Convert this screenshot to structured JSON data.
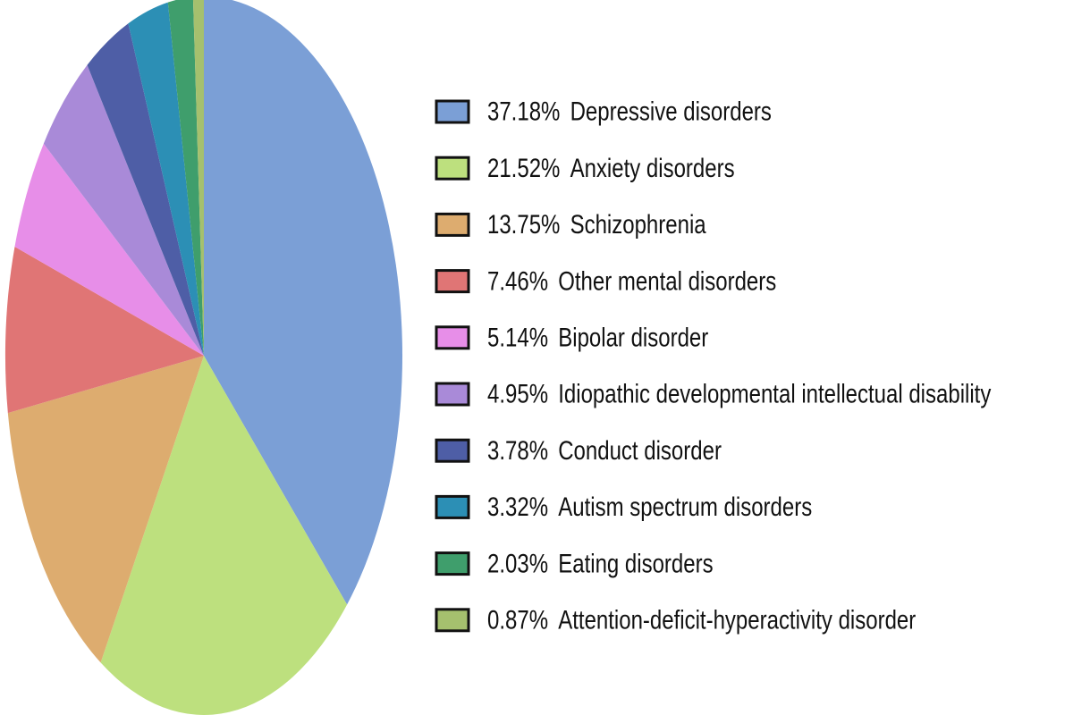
{
  "chart_data": {
    "type": "pie",
    "categories": [
      "Depressive disorders",
      "Anxiety disorders",
      "Schizophrenia",
      "Other mental disorders",
      "Bipolar disorder",
      "Idiopathic developmental intellectual disability",
      "Conduct disorder",
      "Autism spectrum disorders",
      "Eating disorders",
      "Attention-deficit-hyperactivity disorder"
    ],
    "values": [
      37.18,
      21.52,
      13.75,
      7.46,
      5.14,
      4.95,
      3.78,
      3.32,
      2.03,
      0.87
    ],
    "value_labels": [
      "37.18%",
      "21.52%",
      "13.75%",
      "7.46%",
      "5.14%",
      "4.95%",
      "3.78%",
      "3.32%",
      "2.03%",
      "0.87%"
    ],
    "colors": [
      "#7b9fd6",
      "#bde07e",
      "#ddac6f",
      "#e07575",
      "#e78ee8",
      "#a98ad8",
      "#4e5ea6",
      "#2c8fb5",
      "#3f9e6c",
      "#a5c06e"
    ]
  }
}
